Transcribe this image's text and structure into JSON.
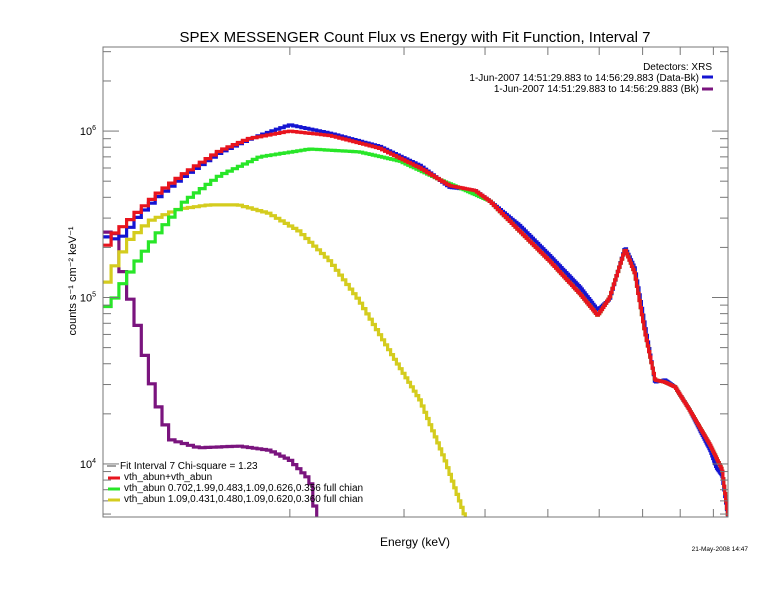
{
  "chart_data": {
    "type": "line",
    "title": "SPEX MESSENGER Count Flux vs Energy with Fit Function, Interval 7",
    "xlabel": "Energy (keV)",
    "ylabel": "counts s⁻¹ cm⁻² keV⁻¹",
    "x_scale": "log",
    "y_scale": "log",
    "xlim": [
      1.03,
      9.48
    ],
    "ylim": [
      4800,
      3200000
    ],
    "y_ticks": [
      {
        "base": "10",
        "exp": "4",
        "value": 10000
      },
      {
        "base": "10",
        "exp": "5",
        "value": 100000
      },
      {
        "base": "10",
        "exp": "6",
        "value": 1000000
      }
    ],
    "x_minor_ticks": [
      2,
      3,
      4,
      5,
      6,
      7,
      8,
      9
    ],
    "grid": false,
    "footer_timestamp": "21-May-2008 14:47",
    "top_legend": {
      "placement": "top-right",
      "header": "Detectors: XRS",
      "entries": [
        {
          "label": "1-Jun-2007 14:51:29.883 to 14:56:29.883 (Data-Bk)",
          "color": "#1414d2"
        },
        {
          "label": "1-Jun-2007 14:51:29.883 to 14:56:29.883 (Bk)",
          "color": "#7a147e"
        }
      ]
    },
    "fit_legend": {
      "placement": "bottom-left",
      "header": "Fit Interval 7   Chi-square = 1.23",
      "entries": [
        {
          "label": "vth_abun+vth_abun",
          "color": "#e8141e"
        },
        {
          "label": "vth_abun 0.702,1.99,0.483,1.09,0.626,0.356  full chian",
          "color": "#28e628"
        },
        {
          "label": "vth_abun 1.09,0.431,0.480,1.09,0.620,0.360  full chian",
          "color": "#d4cc1e"
        }
      ]
    },
    "series": [
      {
        "name": "Data-Bk",
        "color": "#1414d2",
        "points": [
          [
            1.03,
            250000
          ],
          [
            1.055,
            220000
          ],
          [
            1.11,
            235000
          ],
          [
            1.17,
            310000
          ],
          [
            1.26,
            410000
          ],
          [
            1.38,
            540000
          ],
          [
            1.56,
            740000
          ],
          [
            1.73,
            890000
          ],
          [
            2.0,
            1090000
          ],
          [
            2.31,
            970000
          ],
          [
            2.75,
            810000
          ],
          [
            3.18,
            620000
          ],
          [
            3.53,
            460000
          ],
          [
            3.86,
            440000
          ],
          [
            4.07,
            380000
          ],
          [
            4.53,
            270000
          ],
          [
            5.04,
            178000
          ],
          [
            5.61,
            115000
          ],
          [
            5.97,
            84000
          ],
          [
            6.23,
            98000
          ],
          [
            6.58,
            200000
          ],
          [
            6.81,
            150000
          ],
          [
            7.06,
            68000
          ],
          [
            7.32,
            31000
          ],
          [
            7.58,
            32000
          ],
          [
            7.86,
            29000
          ],
          [
            8.28,
            21000
          ],
          [
            8.9,
            12100
          ],
          [
            9.1,
            9500
          ],
          [
            9.29,
            8500
          ],
          [
            9.48,
            4800
          ]
        ]
      },
      {
        "name": "Bk",
        "color": "#7a147e",
        "points": [
          [
            1.03,
            250000
          ],
          [
            1.085,
            240000
          ],
          [
            1.11,
            126000
          ],
          [
            1.15,
            84000
          ],
          [
            1.19,
            48000
          ],
          [
            1.24,
            25000
          ],
          [
            1.31,
            14000
          ],
          [
            1.45,
            12500
          ],
          [
            1.67,
            12800
          ],
          [
            1.86,
            12100
          ],
          [
            2.0,
            10600
          ],
          [
            2.15,
            8000
          ],
          [
            2.2,
            4800
          ]
        ]
      },
      {
        "name": "vth_abun+vth_abun",
        "color": "#e8141e",
        "points": [
          [
            1.03,
            175000
          ],
          [
            1.055,
            230000
          ],
          [
            1.11,
            270000
          ],
          [
            1.17,
            330000
          ],
          [
            1.26,
            430000
          ],
          [
            1.38,
            560000
          ],
          [
            1.56,
            760000
          ],
          [
            1.73,
            900000
          ],
          [
            2.0,
            1000000
          ],
          [
            2.31,
            940000
          ],
          [
            2.75,
            790000
          ],
          [
            3.18,
            600000
          ],
          [
            3.53,
            470000
          ],
          [
            3.86,
            440000
          ],
          [
            4.07,
            380000
          ],
          [
            4.53,
            250000
          ],
          [
            5.04,
            165000
          ],
          [
            5.61,
            105000
          ],
          [
            5.97,
            78000
          ],
          [
            6.23,
            100000
          ],
          [
            6.58,
            196000
          ],
          [
            6.81,
            140000
          ],
          [
            7.06,
            62000
          ],
          [
            7.32,
            32000
          ],
          [
            7.58,
            31000
          ],
          [
            7.86,
            29000
          ],
          [
            8.28,
            21000
          ],
          [
            8.9,
            13000
          ],
          [
            9.29,
            9200
          ],
          [
            9.48,
            4800
          ]
        ]
      },
      {
        "name": "vth_abun 0.702,1.99,0.483,1.09,0.626,0.356",
        "color": "#28e628",
        "points": [
          [
            1.03,
            84000
          ],
          [
            1.07,
            96000
          ],
          [
            1.11,
            125000
          ],
          [
            1.17,
            170000
          ],
          [
            1.26,
            250000
          ],
          [
            1.38,
            380000
          ],
          [
            1.56,
            540000
          ],
          [
            1.8,
            700000
          ],
          [
            2.15,
            780000
          ],
          [
            2.56,
            750000
          ],
          [
            2.96,
            660000
          ],
          [
            3.41,
            510000
          ],
          [
            3.79,
            430000
          ],
          [
            4.07,
            380000
          ],
          [
            4.53,
            250000
          ],
          [
            5.04,
            165000
          ],
          [
            5.61,
            105000
          ],
          [
            5.97,
            78000
          ],
          [
            6.23,
            100000
          ],
          [
            6.58,
            196000
          ],
          [
            6.81,
            140000
          ],
          [
            7.06,
            62000
          ],
          [
            7.32,
            32000
          ],
          [
            7.58,
            31000
          ],
          [
            7.86,
            29000
          ],
          [
            8.28,
            21000
          ],
          [
            8.9,
            13000
          ],
          [
            9.29,
            9200
          ],
          [
            9.48,
            4800
          ]
        ]
      },
      {
        "name": "vth_abun 1.09,0.431,0.480,1.09,0.620,0.360",
        "color": "#d4cc1e",
        "points": [
          [
            1.03,
            110000
          ],
          [
            1.07,
            150000
          ],
          [
            1.13,
            220000
          ],
          [
            1.22,
            290000
          ],
          [
            1.35,
            340000
          ],
          [
            1.5,
            360000
          ],
          [
            1.67,
            360000
          ],
          [
            1.86,
            320000
          ],
          [
            2.07,
            250000
          ],
          [
            2.31,
            165000
          ],
          [
            2.56,
            96000
          ],
          [
            2.85,
            48000
          ],
          [
            3.18,
            24000
          ],
          [
            3.47,
            10600
          ],
          [
            3.73,
            4800
          ]
        ]
      }
    ]
  }
}
